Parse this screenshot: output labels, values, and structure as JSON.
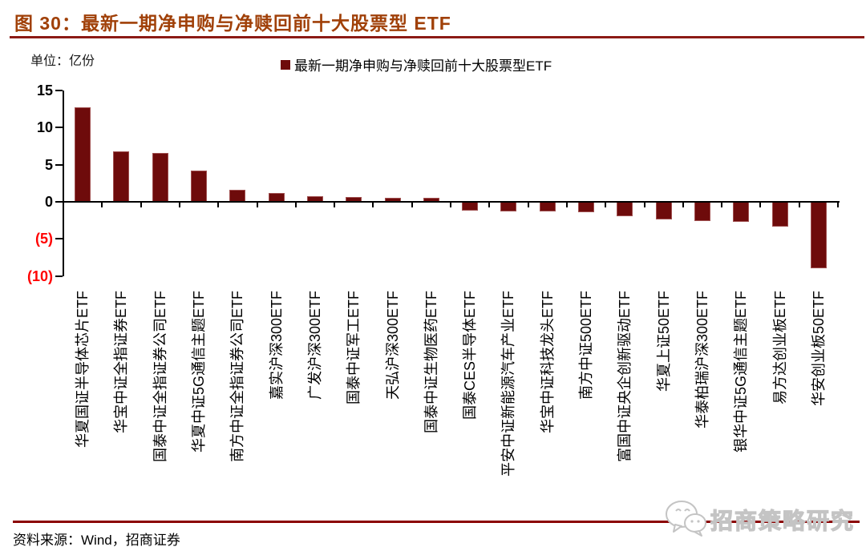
{
  "figure": {
    "title": "图 30：最新一期净申购与净赎回前十大股票型 ETF",
    "unit_label": "单位：亿份",
    "legend_label": "最新一期净申购与净赎回前十大股票型ETF",
    "source": "资料来源：Wind，招商证券",
    "watermark_text": "招商策略研究"
  },
  "colors": {
    "bar": "#6E0B0B",
    "bar_border": "#A05050",
    "title": "#A04008",
    "header_rule": "#8C1A15",
    "footer_rule": "#8B0000",
    "axis": "#000000",
    "negative_tick_label": "#FF0000",
    "watermark_outline": "#C4C4C4"
  },
  "chart_data": {
    "type": "bar",
    "title": "最新一期净申购与净赎回前十大股票型ETF",
    "xlabel": "",
    "ylabel": "亿份",
    "ylim": [
      -10,
      15
    ],
    "yticks": [
      15,
      10,
      5,
      0,
      -5,
      -10
    ],
    "ytick_labels": [
      "15",
      "10",
      "5",
      "0",
      "(5)",
      "(10)"
    ],
    "grid": false,
    "legend_position": "top-center",
    "categories": [
      "华夏国证半导体芯片ETF",
      "华宝中证全指证券ETF",
      "国泰中证全指证券公司ETF",
      "华夏中证5G通信主题ETF",
      "南方中证全指证券公司ETF",
      "嘉实沪深300ETF",
      "广发沪深300ETF",
      "国泰中证军工ETF",
      "天弘沪深300ETF",
      "国泰中证生物医药ETF",
      "国泰CES半导体ETF",
      "平安中证新能源汽车产业ETF",
      "华宝中证科技龙头ETF",
      "南方中证500ETF",
      "富国中证央企创新驱动ETF",
      "华夏上证50ETF",
      "华泰柏瑞沪深300ETF",
      "银华中证5G通信主题ETF",
      "易方达创业板ETF",
      "华安创业板50ETF"
    ],
    "values": [
      12.7,
      6.8,
      6.6,
      4.2,
      1.6,
      1.2,
      0.8,
      0.6,
      0.5,
      0.5,
      -1.2,
      -1.3,
      -1.3,
      -1.4,
      -1.9,
      -2.4,
      -2.6,
      -2.7,
      -3.3,
      -8.9
    ]
  }
}
